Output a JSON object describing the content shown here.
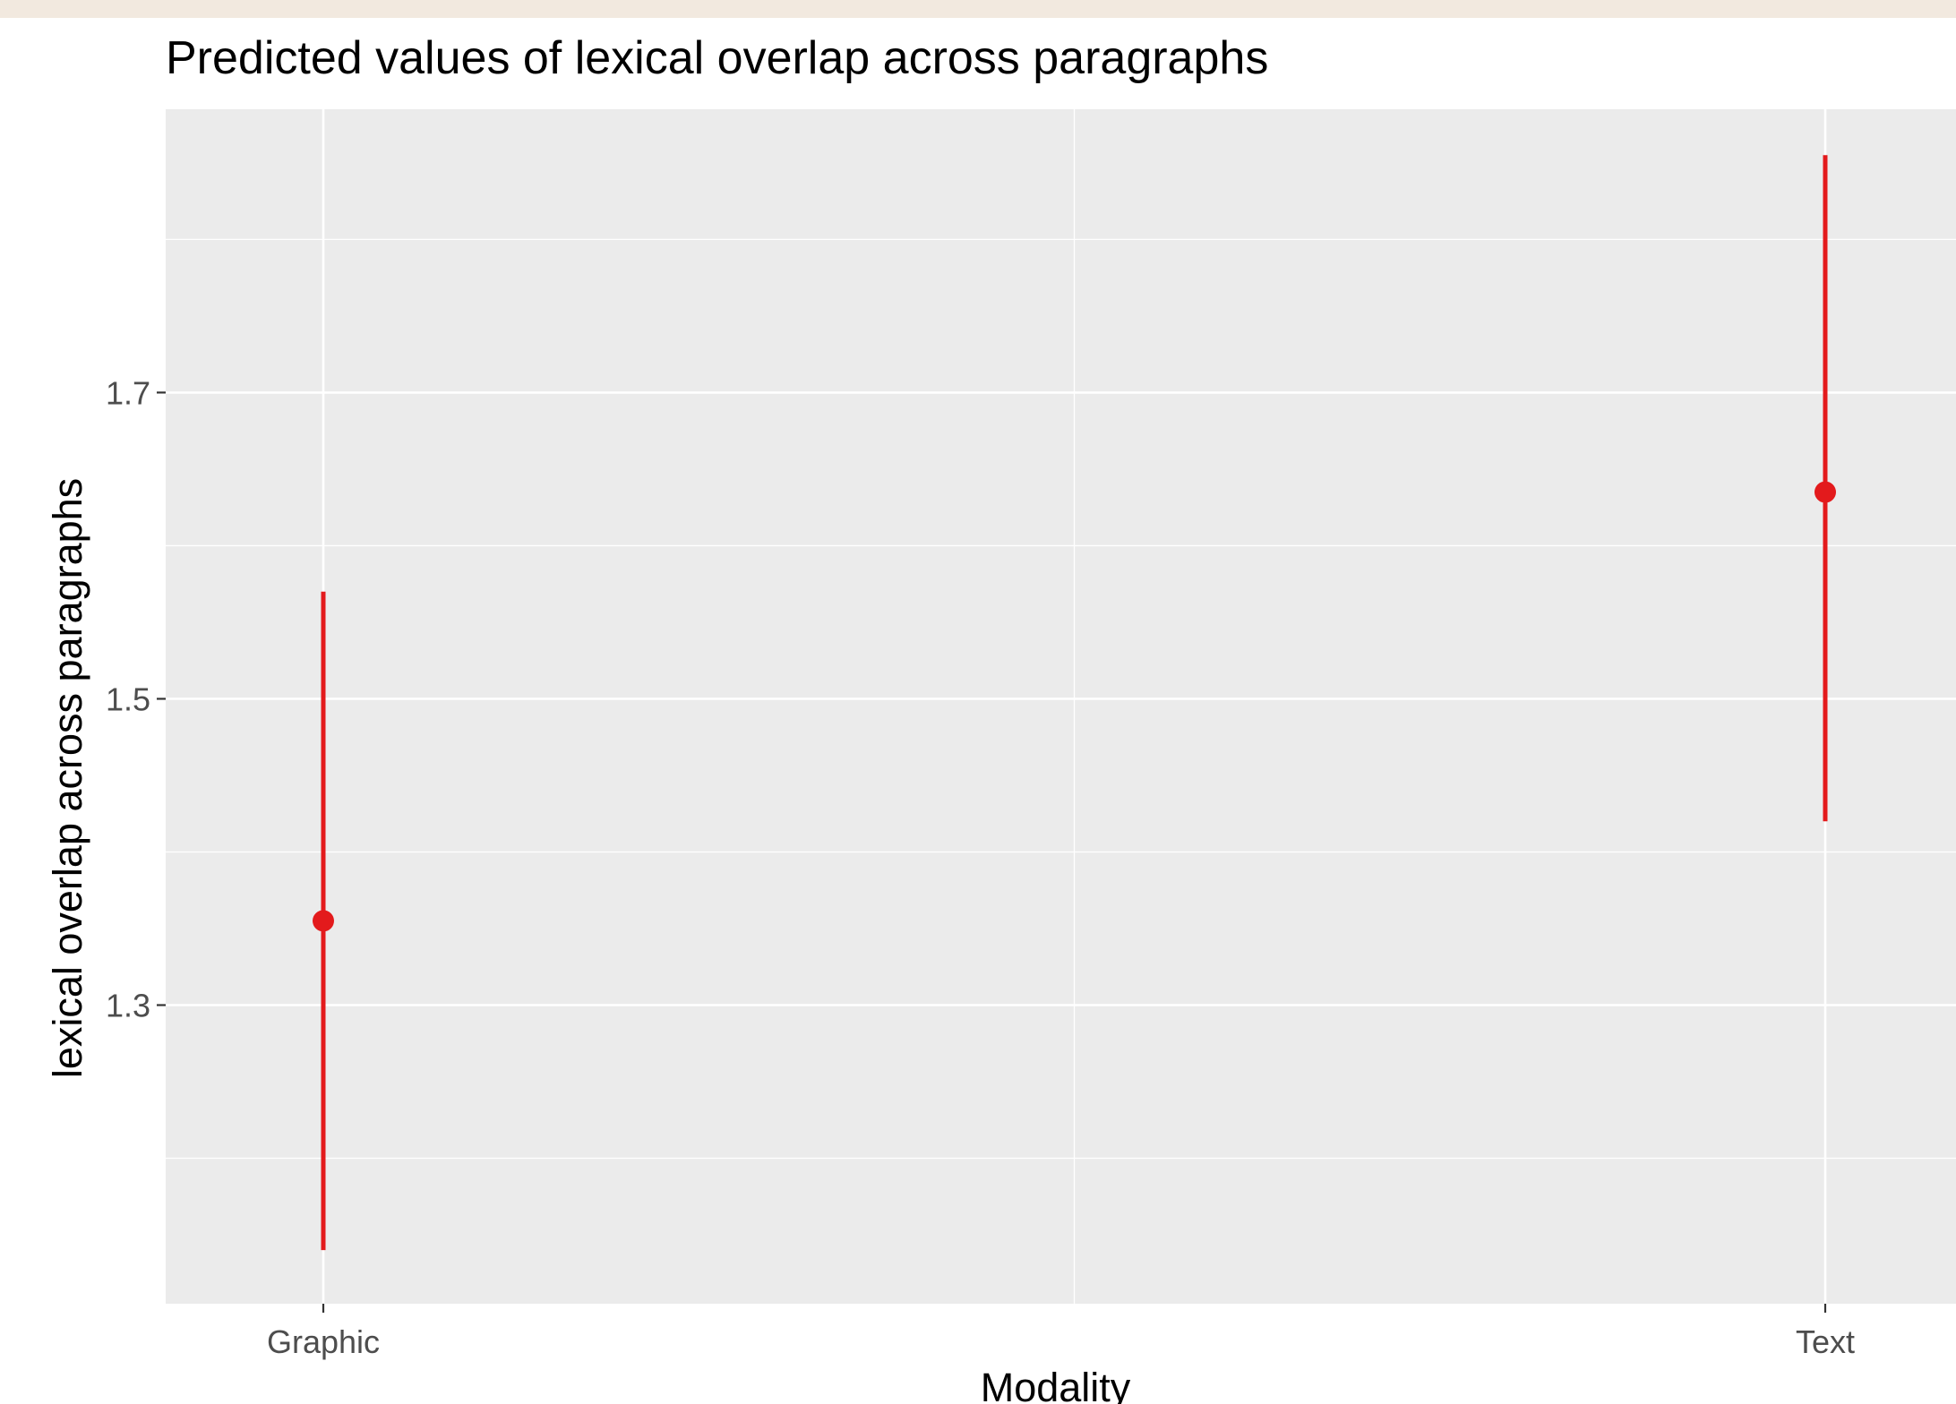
{
  "chart_data": {
    "type": "scatter",
    "title": "Predicted values of lexical overlap across paragraphs",
    "xlabel": "Modality",
    "ylabel": "lexical overlap across paragraphs",
    "categories": [
      "Graphic",
      "Text"
    ],
    "series": [
      {
        "values": [
          1.355,
          1.635
        ],
        "ci_lower": [
          1.14,
          1.42
        ],
        "ci_upper": [
          1.57,
          1.855
        ]
      }
    ],
    "ylim": [
      1.105,
      1.885
    ],
    "yticks": [
      1.3,
      1.5,
      1.7
    ],
    "ytick_labels": [
      "1.3",
      "1.5",
      "1.7"
    ],
    "grid": true,
    "colors": {
      "series": "#e31a1c",
      "panel_background": "#ebebeb",
      "gridline": "#ffffff",
      "top_strip": "#f2e9df"
    }
  }
}
